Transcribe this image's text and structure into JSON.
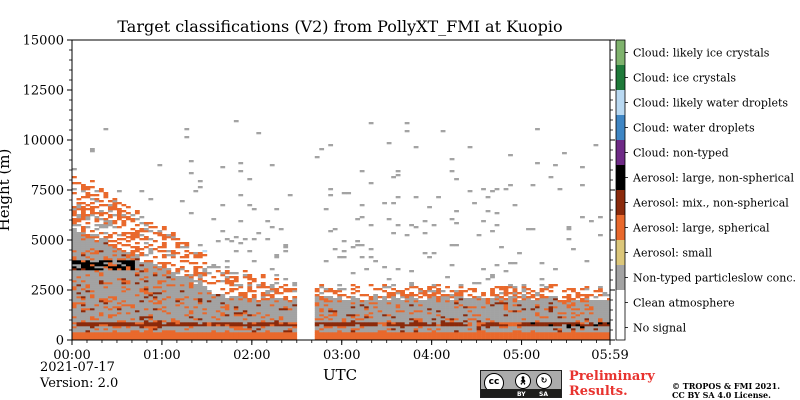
{
  "chart_data": {
    "type": "heatmap",
    "title": "Target classifications (V2) from PollyXT_FMI at Kuopio",
    "xlabel": "UTC",
    "ylabel": "Height (m)",
    "xlim": [
      "00:00",
      "05:59"
    ],
    "ylim": [
      0,
      15000
    ],
    "x_ticks": [
      "00:00",
      "01:00",
      "02:00",
      "03:00",
      "04:00",
      "05:00",
      "05:59"
    ],
    "y_ticks": [
      "0",
      "2500",
      "5000",
      "7500",
      "10000",
      "12500",
      "15000"
    ],
    "data_gap": {
      "start": "02:30",
      "end": "02:40"
    },
    "classes": [
      {
        "label": "Cloud: likely ice crystals",
        "color": "#7fb36d"
      },
      {
        "label": "Cloud: ice crystals",
        "color": "#1f7a3a"
      },
      {
        "label": "Cloud: likely water droplets",
        "color": "#b9d9f2"
      },
      {
        "label": "Cloud: water droplets",
        "color": "#3f86c4"
      },
      {
        "label": "Cloud: non-typed",
        "color": "#6e2a86"
      },
      {
        "label": "Aerosol: large, non-spherical",
        "color": "#000000"
      },
      {
        "label": "Aerosol: mix., non-spherical",
        "color": "#8b2a0b"
      },
      {
        "label": "Aerosol: large, spherical",
        "color": "#e9692c"
      },
      {
        "label": "Aerosol: small",
        "color": "#dcc77a"
      },
      {
        "label": "Non-typed particleslow conc.",
        "color": "#a3a3a3"
      },
      {
        "label": "Clean atmosphere",
        "color": "#ffffff"
      },
      {
        "label": "No signal",
        "color": "#ffffff"
      }
    ],
    "layers": [
      {
        "class": "Non-typed particleslow conc.",
        "time_start": "00:00",
        "time_end": "05:59",
        "height_from": 0,
        "height_to": 2200
      },
      {
        "class": "Aerosol: large, spherical",
        "time_start": "00:00",
        "time_end": "05:59",
        "height_from": 0,
        "height_to": 350
      },
      {
        "class": "Aerosol: mix., non-spherical",
        "time_start": "00:00",
        "time_end": "05:59",
        "height_from": 650,
        "height_to": 900
      },
      {
        "class": "Aerosol: large, non-spherical",
        "time_start": "00:00",
        "time_end": "00:40",
        "height_from": 3500,
        "height_to": 4000
      }
    ]
  },
  "footer": {
    "date": "2021-07-17",
    "version": "Version: 2.0",
    "preliminary": [
      "Preliminary",
      "Results."
    ],
    "copyright": [
      "© TROPOS & FMI 2021.",
      "CC BY SA 4.0 License."
    ],
    "license_badge": {
      "cc": "cc",
      "by": "BY",
      "sa": "SA"
    }
  }
}
